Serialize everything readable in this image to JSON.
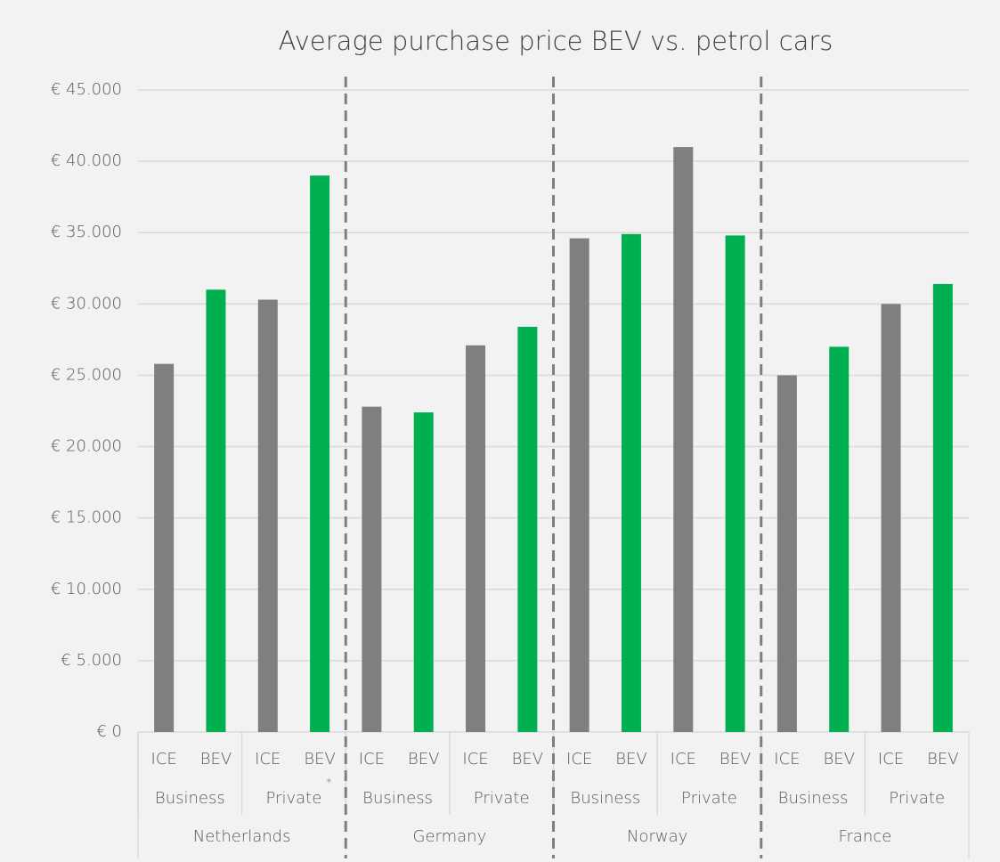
{
  "chart_data": {
    "type": "bar",
    "title": "Average purchase price BEV vs. petrol cars",
    "categories": [
      "ICE",
      "BEV",
      "ICE",
      "BEV",
      "ICE",
      "BEV",
      "ICE",
      "BEV",
      "ICE",
      "BEV",
      "ICE",
      "BEV",
      "ICE",
      "BEV",
      "ICE",
      "BEV"
    ],
    "segments": [
      "Business",
      "Private",
      "Business",
      "Private",
      "Business",
      "Private",
      "Business",
      "Private"
    ],
    "countries": [
      "Netherlands",
      "Germany",
      "Norway",
      "France"
    ],
    "annotations": [
      "*"
    ],
    "values": [
      25800,
      31000,
      30300,
      39000,
      22800,
      22400,
      27100,
      28400,
      34600,
      34900,
      41000,
      34800,
      25000,
      27000,
      30000,
      31400
    ],
    "colors": [
      "#7f7f7f",
      "#00b050"
    ],
    "ylim": [
      0,
      45000
    ],
    "yticks": [
      {
        "value": 0,
        "label": "€ 0"
      },
      {
        "value": 5000,
        "label": "€ 5.000"
      },
      {
        "value": 10000,
        "label": "€ 10.000"
      },
      {
        "value": 15000,
        "label": "€ 15.000"
      },
      {
        "value": 20000,
        "label": "€ 20.000"
      },
      {
        "value": 25000,
        "label": "€ 25.000"
      },
      {
        "value": 30000,
        "label": "€ 30.000"
      },
      {
        "value": 35000,
        "label": "€ 35.000"
      },
      {
        "value": 40000,
        "label": "€ 40.000"
      },
      {
        "value": 45000,
        "label": "€ 45.000"
      }
    ],
    "grid": true
  }
}
